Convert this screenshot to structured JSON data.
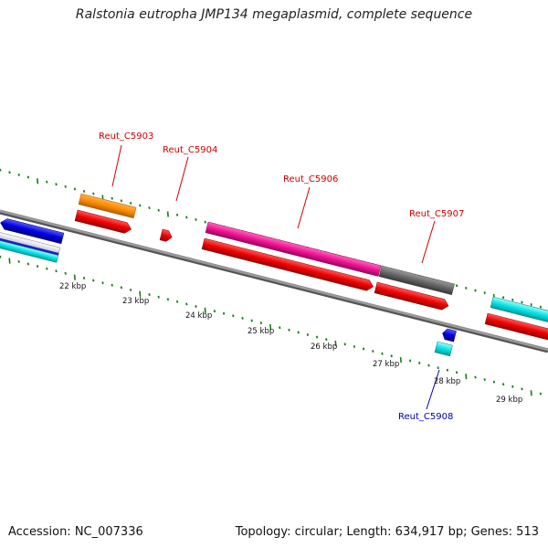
{
  "title": "Ralstonia eutropha JMP134 megaplasmid, complete sequence",
  "footer": {
    "accession": "Accession: NC_007336",
    "summary": "Topology: circular; Length: 634,917 bp; Genes: 513"
  },
  "colors": {
    "backbone": "#8a8a8a",
    "tick": "#1a7a1a",
    "label_top": "#cc0000",
    "label_bottom": "#0000aa"
  },
  "scale_labels": [
    "22 kbp",
    "23 kbp",
    "24 kbp",
    "25 kbp",
    "26 kbp",
    "27 kbp",
    "28 kbp",
    "29 kbp"
  ],
  "gene_labels": [
    {
      "text": "Reut_C5903",
      "color": "#cc0000"
    },
    {
      "text": "Reut_C5904",
      "color": "#cc0000"
    },
    {
      "text": "Reut_C5906",
      "color": "#cc0000"
    },
    {
      "text": "Reut_C5907",
      "color": "#cc0000"
    },
    {
      "text": "Reut_C5908",
      "color": "#0000aa"
    }
  ],
  "features": [
    {
      "name": "gene-orange",
      "color": "#ff8c00"
    },
    {
      "name": "cds-red",
      "color": "#ee0000"
    },
    {
      "name": "gene-magenta",
      "color": "#ee1493"
    },
    {
      "name": "gene-gray",
      "color": "#666666"
    },
    {
      "name": "gene-cyan",
      "color": "#00e5e5"
    },
    {
      "name": "gene-blue",
      "color": "#0000dd"
    }
  ]
}
